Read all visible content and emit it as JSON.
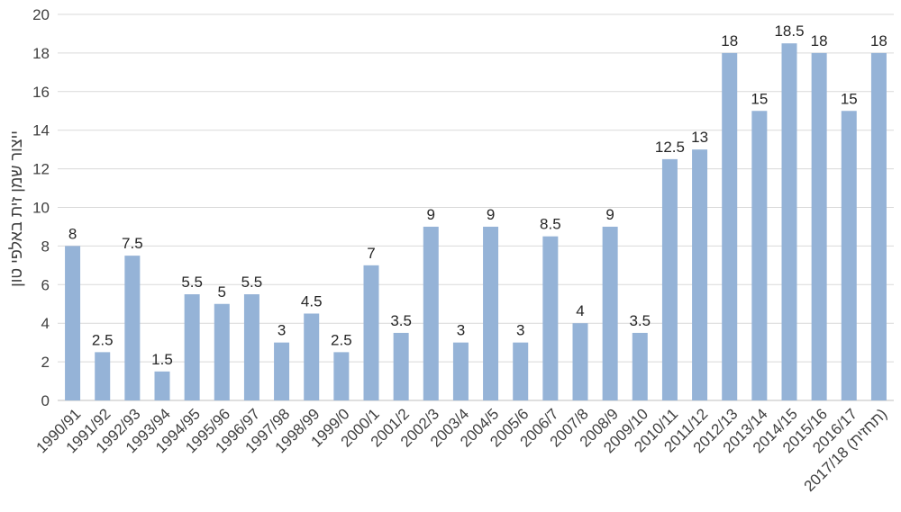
{
  "chart_data": {
    "type": "bar",
    "title": "",
    "xlabel": "",
    "ylabel": "ייצור שמן זית באלפי טון",
    "ylim": [
      0,
      20
    ],
    "yticks": [
      0,
      2,
      4,
      6,
      8,
      10,
      12,
      14,
      16,
      18,
      20
    ],
    "grid": true,
    "legend": "none",
    "bar_color": "#95b3d7",
    "grid_color": "#d9d9d9",
    "categories": [
      "1990/91",
      "1991/92",
      "1992/93",
      "1993/94",
      "1994/95",
      "1995/96",
      "1996/97",
      "1997/98",
      "1998/99",
      "1999/0",
      "2000/1",
      "2001/2",
      "2002/3",
      "2003/4",
      "2004/5",
      "2005/6",
      "2006/7",
      "2007/8",
      "2008/9",
      "2009/10",
      "2010/11",
      "2011/12",
      "2012/13",
      "2013/14",
      "2014/15",
      "2015/16",
      "2016/17",
      "2017/18 (תחזית)"
    ],
    "values": [
      8,
      2.5,
      7.5,
      1.5,
      5.5,
      5,
      5.5,
      3,
      4.5,
      2.5,
      7,
      3.5,
      9,
      3,
      9,
      3,
      8.5,
      4,
      9,
      3.5,
      12.5,
      13,
      18,
      15,
      18.5,
      18,
      15,
      18
    ],
    "data_labels": [
      "8",
      "2.5",
      "7.5",
      "1.5",
      "5.5",
      "5",
      "5.5",
      "3",
      "4.5",
      "2.5",
      "7",
      "3.5",
      "9",
      "3",
      "9",
      "3",
      "8.5",
      "4",
      "9",
      "3.5",
      "12.5",
      "13",
      "18",
      "15",
      "18.5",
      "18",
      "15",
      "18"
    ]
  }
}
